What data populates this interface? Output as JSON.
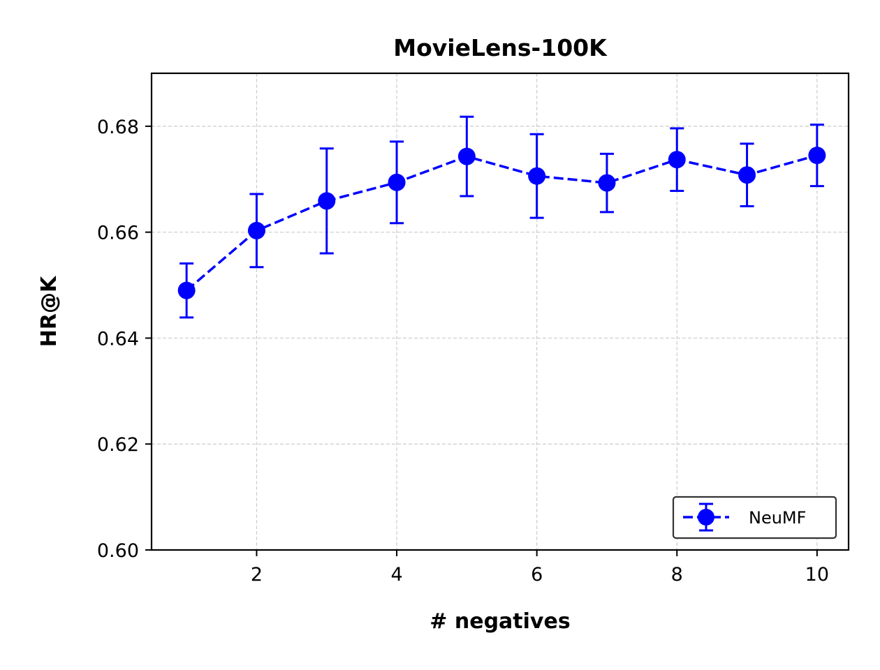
{
  "chart_data": {
    "type": "line",
    "title": "MovieLens-100K",
    "xlabel": "# negatives",
    "ylabel": "HR@K",
    "xlim": [
      0.5,
      10.45
    ],
    "ylim": [
      0.6,
      0.69
    ],
    "x_ticks": [
      2,
      4,
      6,
      8,
      10
    ],
    "y_ticks": [
      0.6,
      0.62,
      0.64,
      0.66,
      0.68
    ],
    "x_tick_labels": [
      "2",
      "4",
      "6",
      "8",
      "10"
    ],
    "y_tick_labels": [
      "0.60",
      "0.62",
      "0.64",
      "0.66",
      "0.68"
    ],
    "grid": true,
    "legend_position": "lower-right",
    "series": [
      {
        "name": "NeuMF",
        "color": "#0000ff",
        "line_style": "dashed",
        "marker": "circle",
        "x": [
          1,
          2,
          3,
          4,
          5,
          6,
          7,
          8,
          9,
          10
        ],
        "y": [
          0.649,
          0.6603,
          0.6659,
          0.6694,
          0.6743,
          0.6706,
          0.6693,
          0.6737,
          0.6708,
          0.6745
        ],
        "error": [
          0.0051,
          0.0069,
          0.0099,
          0.0077,
          0.0075,
          0.0079,
          0.0055,
          0.0059,
          0.0059,
          0.0058
        ]
      }
    ]
  }
}
